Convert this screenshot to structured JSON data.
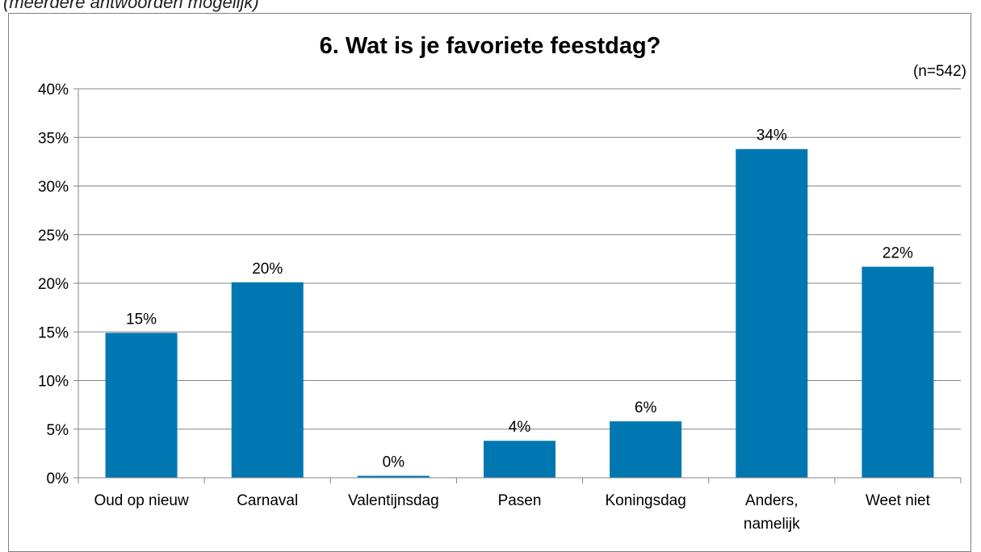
{
  "caption": "(meerdere antwoorden mogelijk)",
  "chart_data": {
    "type": "bar",
    "title": "6. Wat is je favoriete feestdag?",
    "note": "(n=542)",
    "categories": [
      [
        "Oud op nieuw"
      ],
      [
        "Carnaval"
      ],
      [
        "Valentijnsdag"
      ],
      [
        "Pasen"
      ],
      [
        "Koningsdag"
      ],
      [
        "Anders,",
        "namelijk"
      ],
      [
        "Weet niet"
      ]
    ],
    "values": [
      14.9,
      20.1,
      0.2,
      3.8,
      5.8,
      33.8,
      21.7
    ],
    "data_labels": [
      "15%",
      "20%",
      "0%",
      "4%",
      "6%",
      "34%",
      "22%"
    ],
    "yticks": [
      "0%",
      "5%",
      "10%",
      "15%",
      "20%",
      "25%",
      "30%",
      "35%",
      "40%"
    ],
    "ylim": [
      0,
      40
    ],
    "grid": true,
    "bar_color": "#0077b0"
  }
}
